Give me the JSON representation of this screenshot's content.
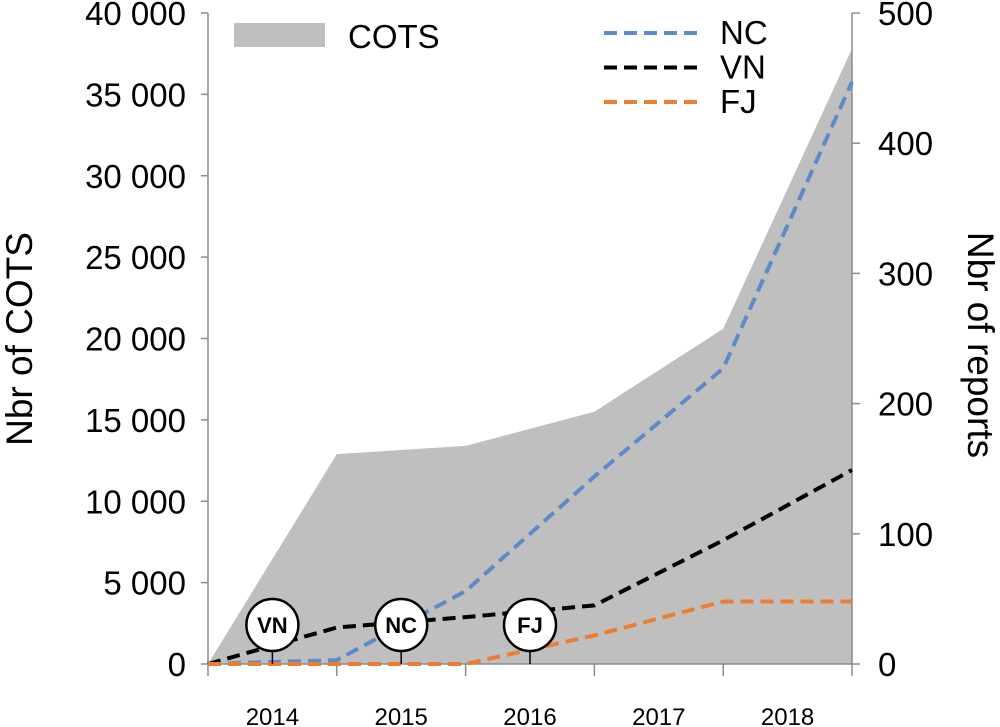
{
  "chart_data": {
    "type": "area",
    "x": [
      2014,
      2015,
      2016,
      2017,
      2018,
      2019
    ],
    "xlim": [
      2014,
      2019
    ],
    "xtick_labels": [
      "2014",
      "2015",
      "2016",
      "2017",
      "2018"
    ],
    "ylabel": "Nbr of COTS",
    "ylim": [
      0,
      40000
    ],
    "yticks": [
      0,
      5000,
      10000,
      15000,
      20000,
      25000,
      30000,
      35000,
      40000
    ],
    "ytick_labels": [
      "0",
      "5 000",
      "10 000",
      "15 000",
      "20 000",
      "25 000",
      "30 000",
      "35 000",
      "40 000"
    ],
    "y2label": "Nbr of reports",
    "y2lim": [
      0,
      500
    ],
    "y2ticks": [
      0,
      100,
      200,
      300,
      400,
      500
    ],
    "y2tick_labels": [
      "0",
      "100",
      "200",
      "300",
      "400",
      "500"
    ],
    "grid": false,
    "axis_color": "#8c8c8c",
    "series": [
      {
        "name": "COTS",
        "filled": true,
        "dashed": false,
        "secondary_axis": false,
        "color": "#bfbfbf",
        "values": [
          0,
          12900,
          13400,
          15500,
          20600,
          37800
        ]
      },
      {
        "name": "NC",
        "filled": false,
        "dashed": true,
        "secondary_axis": true,
        "color": "#5b8bcb",
        "values": [
          0,
          3,
          56,
          144,
          227,
          447
        ]
      },
      {
        "name": "VN",
        "filled": false,
        "dashed": true,
        "secondary_axis": true,
        "color": "#000000",
        "values": [
          0,
          28,
          36,
          45,
          95,
          149
        ]
      },
      {
        "name": "FJ",
        "filled": false,
        "dashed": true,
        "secondary_axis": true,
        "color": "#ed7d31",
        "values": [
          0,
          0,
          0,
          22,
          48,
          48
        ]
      }
    ],
    "annotations": [
      {
        "label": "VN",
        "x": 2014.5
      },
      {
        "label": "NC",
        "x": 2015.5
      },
      {
        "label": "FJ",
        "x": 2016.5
      }
    ]
  }
}
